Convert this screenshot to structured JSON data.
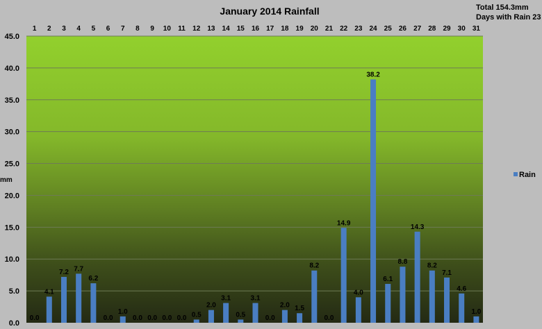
{
  "chart_data": {
    "type": "bar",
    "title": "January 2014 Rainfall",
    "ylabel": "mm",
    "ylim": [
      0,
      45
    ],
    "yticks": [
      "0.0",
      "5.0",
      "10.0",
      "15.0",
      "20.0",
      "25.0",
      "30.0",
      "35.0",
      "40.0",
      "45.0"
    ],
    "categories": [
      "1",
      "2",
      "3",
      "4",
      "5",
      "6",
      "7",
      "8",
      "9",
      "10",
      "11",
      "12",
      "13",
      "14",
      "15",
      "16",
      "17",
      "18",
      "19",
      "20",
      "21",
      "22",
      "23",
      "24",
      "25",
      "26",
      "27",
      "28",
      "29",
      "30",
      "31"
    ],
    "series": [
      {
        "name": "Rain",
        "values": [
          0.0,
          4.1,
          7.2,
          7.7,
          6.2,
          0.0,
          1.0,
          0.0,
          0.0,
          0.0,
          0.0,
          0.5,
          2.0,
          3.1,
          0.5,
          3.1,
          0.0,
          2.0,
          1.5,
          8.2,
          0.0,
          14.9,
          4.0,
          38.2,
          6.1,
          8.8,
          14.3,
          8.2,
          7.1,
          4.6,
          1.0
        ],
        "labels": [
          "0.0",
          "4.1",
          "7.2",
          "7.7",
          "6.2",
          "0.0",
          "1.0",
          "0.0",
          "0.0",
          "0.0",
          "0.0",
          "0.5",
          "2.0",
          "3.1",
          "0.5",
          "3.1",
          "0.0",
          "2.0",
          "1.5",
          "8.2",
          "0.0",
          "14.9",
          "4.0",
          "38.2",
          "6.1",
          "8.8",
          "14.3",
          "8.2",
          "7.1",
          "4.6",
          "1.0"
        ],
        "color": "#4a7ec2"
      }
    ],
    "grid": true,
    "legend": "right",
    "xaxis_position": "top"
  },
  "summary": {
    "total": "Total 154.3mm",
    "days": "Days with Rain  23"
  },
  "colors": {
    "background": "#bdbdbd",
    "plot_top": "#8fce2c",
    "plot_bottom": "#272e16",
    "gridline": "#6c7a52"
  }
}
